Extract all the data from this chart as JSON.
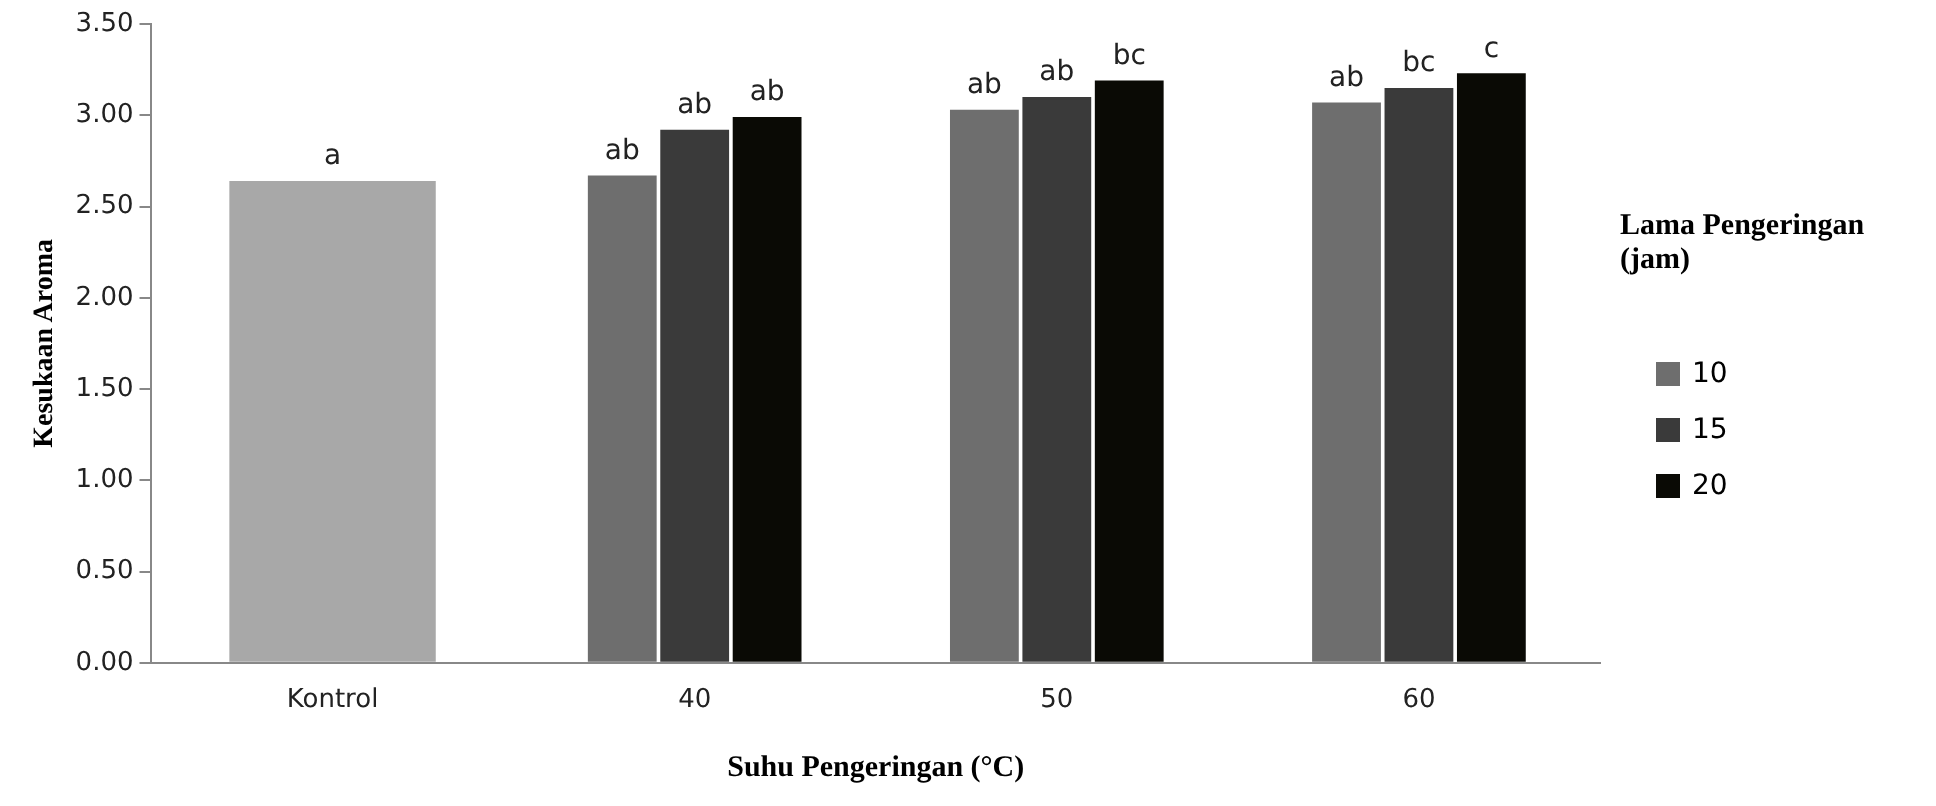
{
  "chart_data": {
    "type": "bar",
    "xlabel": "Suhu Pengeringan (°C)",
    "ylabel": "Kesukaan Aroma",
    "legend_title": "Lama Pengeringan (jam)",
    "categories": [
      "Kontrol",
      "40",
      "50",
      "60"
    ],
    "series": [
      {
        "color": "#a8a8a8",
        "values": [
          2.64,
          null,
          null,
          null
        ],
        "value_labels": [
          "a",
          null,
          null,
          null
        ]
      },
      {
        "name": "10",
        "color": "#6e6e6e",
        "values": [
          null,
          2.67,
          3.03,
          3.07
        ],
        "value_labels": [
          null,
          "ab",
          "ab",
          "ab"
        ]
      },
      {
        "name": "15",
        "color": "#3a3a3a",
        "values": [
          null,
          2.92,
          3.1,
          3.15
        ],
        "value_labels": [
          null,
          "ab",
          "ab",
          "bc"
        ]
      },
      {
        "name": "20",
        "color": "#0a0a05",
        "values": [
          null,
          2.99,
          3.19,
          3.23
        ],
        "value_labels": [
          null,
          "ab",
          "bc",
          "c"
        ]
      }
    ],
    "ylim": [
      0,
      3.5
    ],
    "yticks": [
      {
        "value": 0,
        "label": "0.00"
      },
      {
        "value": 0.5,
        "label": "0.50"
      },
      {
        "value": 1,
        "label": "1.00"
      },
      {
        "value": 1.5,
        "label": "1.50"
      },
      {
        "value": 2,
        "label": "2.00"
      },
      {
        "value": 2.5,
        "label": "2.50"
      },
      {
        "value": 3,
        "label": "3.00"
      },
      {
        "value": 3.5,
        "label": "3.50"
      }
    ],
    "grid": false,
    "legend": "right"
  }
}
